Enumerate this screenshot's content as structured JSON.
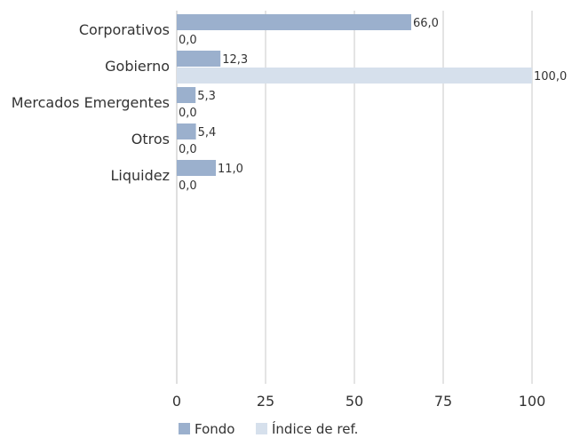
{
  "chart_data": {
    "type": "bar",
    "orientation": "horizontal",
    "categories": [
      "Corporativos",
      "Gobierno",
      "Mercados Emergentes",
      "Otros",
      "Liquidez"
    ],
    "series": [
      {
        "name": "Fondo",
        "values": [
          66.0,
          12.3,
          5.3,
          5.4,
          11.0
        ],
        "labels": [
          "66,0",
          "12,3",
          "5,3",
          "5,4",
          "11,0"
        ],
        "color": "#9bb0cd"
      },
      {
        "name": "Índice de ref.",
        "values": [
          0.0,
          100.0,
          0.0,
          0.0,
          0.0
        ],
        "labels": [
          "0,0",
          "100,0",
          "0,0",
          "0,0",
          "0,0"
        ],
        "color": "#d6e0ec"
      }
    ],
    "x_ticks": [
      0,
      25,
      50,
      75,
      100
    ],
    "x_tick_labels": [
      "0",
      "25",
      "50",
      "75",
      "100"
    ],
    "xlim": [
      0,
      100
    ],
    "grid": true,
    "legend_position": "bottom"
  }
}
